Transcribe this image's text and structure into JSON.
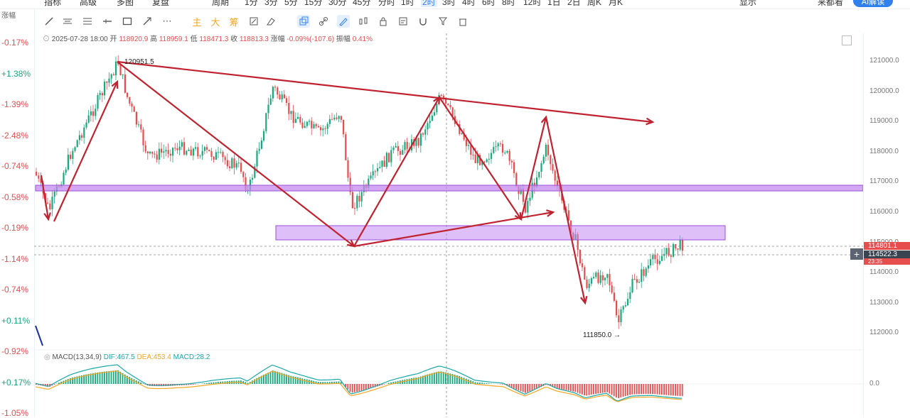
{
  "topbar": {
    "items": [
      "指标",
      "高级",
      "多图",
      "复盘",
      "周期",
      "1分",
      "3分",
      "5分",
      "15分",
      "30分",
      "45分",
      "分时",
      "1时",
      "2时",
      "3时",
      "4时",
      "6时",
      "8时",
      "12时",
      "1日",
      "2日",
      "周K",
      "月K"
    ],
    "active": "2时",
    "right_items": [
      "显示",
      "来都看"
    ],
    "ai_label": "AI解读"
  },
  "left": {
    "header": "涨幅",
    "pcts": [
      {
        "text": "-0.17%",
        "color": "#e64d4d"
      },
      {
        "text": "+1.38%",
        "color": "#19a97b"
      },
      {
        "text": "-1.39%",
        "color": "#e64d4d"
      },
      {
        "text": "-2.48%",
        "color": "#e64d4d"
      },
      {
        "text": "-0.74%",
        "color": "#e64d4d"
      },
      {
        "text": "-0.58%",
        "color": "#e64d4d"
      },
      {
        "text": "-0.19%",
        "color": "#e64d4d"
      },
      {
        "text": "-1.14%",
        "color": "#e64d4d"
      },
      {
        "text": "-0.74%",
        "color": "#e64d4d"
      },
      {
        "text": "+0.11%",
        "color": "#19a97b"
      },
      {
        "text": "-0.92%",
        "color": "#e64d4d"
      },
      {
        "text": "+0.17%",
        "color": "#19a97b"
      },
      {
        "text": "-1.05%",
        "color": "#e64d4d"
      }
    ]
  },
  "toolbar": {
    "icons": [
      "trendline-icon",
      "parallel-lines-icon",
      "horizontal-lines-icon",
      "horizontal-ray-icon",
      "rectangle-icon",
      "arrow-line-icon",
      "more-dots-icon",
      "main-label",
      "big-label",
      "chip-label",
      "pen-icon",
      "eraser-icon",
      "layers-icon",
      "link-icon",
      "brush-icon",
      "candle-type-icon",
      "lock-icon",
      "note-icon",
      "magnet-icon",
      "filter-icon",
      "trash-icon"
    ],
    "main_label": "主",
    "big_label": "大",
    "chip_label": "筹"
  },
  "info": {
    "datetime": "2025-07-28 18:00",
    "open_label": "开",
    "open": "118920.9",
    "high_label": "高",
    "high": "118959.1",
    "low_label": "低",
    "low": "118471.3",
    "close_label": "收",
    "close": "118813.3",
    "change_label": "涨幅",
    "change": "-0.09%(-107.6)",
    "amp_label": "振幅",
    "amp": "0.41%"
  },
  "price_axis": {
    "labels": [
      "121000.0",
      "120000.0",
      "119000.0",
      "118000.0",
      "117000.0",
      "116000.0",
      "115000.0",
      "114000.0",
      "113000.0",
      "112000.0"
    ],
    "tag_red": "114801.1",
    "tag_dark": "114522.3",
    "tag_dark_sub": "23:35"
  },
  "annotations": {
    "high_label": "120951.5",
    "low_label": "111850.0 →"
  },
  "macd": {
    "name": "MACD(13,34,9)",
    "dif": "DIF:467.5",
    "dea": "DEA:453.4",
    "macd": "MACD:28.2",
    "zero": "0.0",
    "colors": {
      "dif": "#1aa7a8",
      "dea": "#f5a623",
      "macd": "#1aa7a8"
    }
  },
  "colors": {
    "up": "#19a97b",
    "down": "#e64d4d",
    "drawing": "#c0222f",
    "zone": "#c58af0"
  }
}
